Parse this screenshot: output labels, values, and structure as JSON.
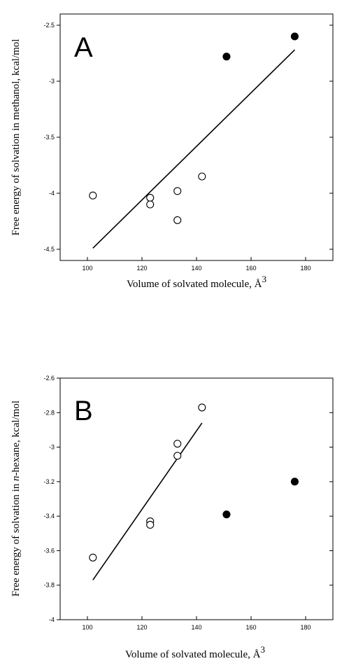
{
  "chart_data": [
    {
      "type": "scatter",
      "panel_label": "A",
      "xlabel": "Volume of solvated molecule, Å",
      "xlabel_sup": "3",
      "ylabel": "Free energy of solvation in methanol, kcal/mol",
      "xlim": [
        90,
        190
      ],
      "ylim": [
        -4.6,
        -2.4
      ],
      "x_ticks": [
        100,
        120,
        140,
        160,
        180
      ],
      "y_ticks": [
        -2.5,
        -3,
        -3.5,
        -4,
        -4.5
      ],
      "y_tick_labels": [
        "-2.5",
        "-3",
        "-3.5",
        "-4",
        "-4.5"
      ],
      "grid": false,
      "series": [
        {
          "marker": "open-circle",
          "x": [
            102,
            123,
            123,
            133,
            133,
            142
          ],
          "y": [
            -4.02,
            -4.04,
            -4.1,
            -3.98,
            -4.24,
            -3.85
          ]
        },
        {
          "marker": "filled-circle",
          "x": [
            151,
            176
          ],
          "y": [
            -2.78,
            -2.6
          ]
        }
      ],
      "fit_line": {
        "x": [
          102,
          176
        ],
        "y": [
          -4.49,
          -2.72
        ]
      }
    },
    {
      "type": "scatter",
      "panel_label": "B",
      "xlabel": "Volume of solvated molecule, Å",
      "xlabel_sup": "3",
      "ylabel_pre": "Free energy of solvation in ",
      "ylabel_italic": "n",
      "ylabel_post": "-hexane, kcal/mol",
      "xlim": [
        90,
        190
      ],
      "ylim": [
        -4.0,
        -2.6
      ],
      "x_ticks": [
        100,
        120,
        140,
        160,
        180
      ],
      "y_ticks": [
        -2.6,
        -2.8,
        -3,
        -3.2,
        -3.4,
        -3.6,
        -3.8,
        -4
      ],
      "y_tick_labels": [
        "-2.6",
        "-2.8",
        "-3",
        "-3.2",
        "-3.4",
        "-3.6",
        "-3.8",
        "-4"
      ],
      "grid": false,
      "series": [
        {
          "marker": "open-circle",
          "x": [
            102,
            123,
            123,
            133,
            133,
            142
          ],
          "y": [
            -3.64,
            -3.43,
            -3.45,
            -2.98,
            -3.05,
            -2.77
          ]
        },
        {
          "marker": "filled-circle",
          "x": [
            151,
            176
          ],
          "y": [
            -3.39,
            -3.2
          ]
        }
      ],
      "fit_line": {
        "x": [
          102,
          142
        ],
        "y": [
          -3.77,
          -2.86
        ]
      }
    }
  ]
}
